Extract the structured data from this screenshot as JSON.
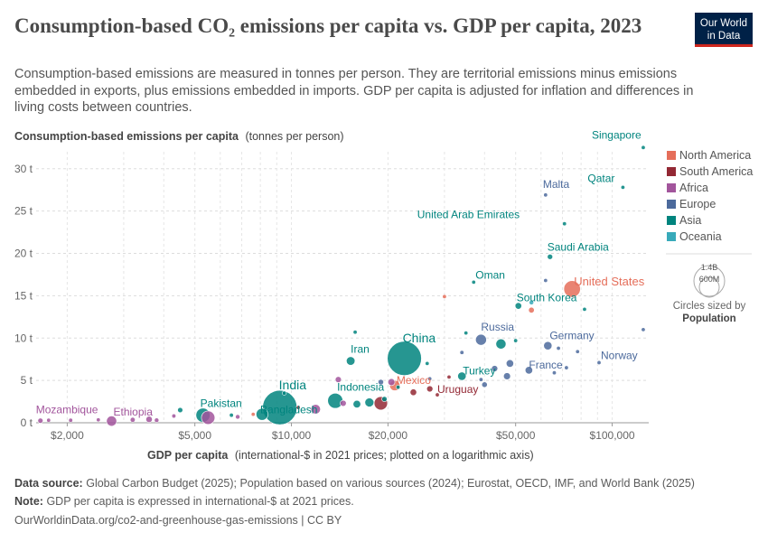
{
  "header": {
    "title": "Consumption-based CO₂ emissions per capita vs. GDP per capita, 2023",
    "subtitle": "Consumption-based emissions are measured in tonnes per person. They are territorial emissions minus emissions embedded in exports, plus emissions embedded in imports. GDP per capita is adjusted for inflation and differences in living costs between countries.",
    "logo_line1": "Our World",
    "logo_line2": "in Data"
  },
  "chart_data": {
    "type": "scatter",
    "title": "Consumption-based CO₂ emissions per capita vs. GDP per capita, 2023",
    "ylabel_bold": "Consumption-based emissions per capita",
    "ylabel_unit": "(tonnes per person)",
    "xlabel_bold": "GDP per capita",
    "xlabel_unit": "(international-$ in 2021 prices; plotted on a logarithmic axis)",
    "x_scale": "log",
    "xlim": [
      1600,
      130000
    ],
    "ylim": [
      0,
      32
    ],
    "x_ticks": [
      {
        "value": 2000,
        "label": "$2,000"
      },
      {
        "value": 5000,
        "label": "$5,000"
      },
      {
        "value": 10000,
        "label": "$10,000"
      },
      {
        "value": 20000,
        "label": "$20,000"
      },
      {
        "value": 50000,
        "label": "$50,000"
      },
      {
        "value": 100000,
        "label": "$100,000"
      }
    ],
    "y_ticks": [
      {
        "value": 0,
        "label": "0 t"
      },
      {
        "value": 5,
        "label": "5 t"
      },
      {
        "value": 10,
        "label": "10 t"
      },
      {
        "value": 15,
        "label": "15 t"
      },
      {
        "value": 20,
        "label": "20 t"
      },
      {
        "value": 25,
        "label": "25 t"
      },
      {
        "value": 30,
        "label": "30 t"
      }
    ],
    "grid": true,
    "legend": {
      "placement": "right",
      "regions": [
        {
          "name": "North America",
          "color": "#e56e5a"
        },
        {
          "name": "South America",
          "color": "#932834"
        },
        {
          "name": "Africa",
          "color": "#a2559c"
        },
        {
          "name": "Europe",
          "color": "#4c6a9c"
        },
        {
          "name": "Asia",
          "color": "#00847e"
        },
        {
          "name": "Oceania",
          "color": "#38aaba"
        }
      ],
      "size_title": "Circles sized by",
      "size_variable": "Population",
      "size_large_label": "1.4B",
      "size_small_label": "600M"
    },
    "points": [
      {
        "label": "Singapore",
        "x": 125000,
        "y": 32.5,
        "region": "Asia",
        "pop": 6
      },
      {
        "label": "Qatar",
        "x": 108000,
        "y": 27.8,
        "region": "Asia",
        "pop": 3
      },
      {
        "label": "Malta",
        "x": 62000,
        "y": 26.9,
        "region": "Europe",
        "pop": 0.5
      },
      {
        "label": "United Arab Emirates",
        "x": 71000,
        "y": 23.5,
        "region": "Asia",
        "pop": 10
      },
      {
        "label": "Saudi Arabia",
        "x": 64000,
        "y": 19.6,
        "region": "Asia",
        "pop": 35
      },
      {
        "label": "Oman",
        "x": 37000,
        "y": 16.6,
        "region": "Asia",
        "pop": 5
      },
      {
        "label": "United States",
        "x": 75000,
        "y": 15.8,
        "region": "North America",
        "pop": 335
      },
      {
        "label": "South Korea",
        "x": 51000,
        "y": 13.8,
        "region": "Asia",
        "pop": 52
      },
      {
        "label": "China",
        "x": 22500,
        "y": 7.6,
        "region": "Asia",
        "pop": 1410
      },
      {
        "label": "Russia",
        "x": 39000,
        "y": 9.8,
        "region": "Europe",
        "pop": 144
      },
      {
        "label": "Germany",
        "x": 63000,
        "y": 9.1,
        "region": "Europe",
        "pop": 84
      },
      {
        "label": "Iran",
        "x": 15300,
        "y": 7.3,
        "region": "Asia",
        "pop": 89
      },
      {
        "label": "Norway",
        "x": 91000,
        "y": 7.1,
        "region": "Europe",
        "pop": 5
      },
      {
        "label": "France",
        "x": 55000,
        "y": 6.2,
        "region": "Europe",
        "pop": 68
      },
      {
        "label": "Turkey",
        "x": 34000,
        "y": 5.5,
        "region": "Asia",
        "pop": 86
      },
      {
        "label": "Mexico",
        "x": 21000,
        "y": 4.4,
        "region": "North America",
        "pop": 129
      },
      {
        "label": "Indonesia",
        "x": 13700,
        "y": 2.6,
        "region": "Asia",
        "pop": 277
      },
      {
        "label": "Uruguay",
        "x": 28500,
        "y": 3.3,
        "region": "South America",
        "pop": 3.4
      },
      {
        "label": "India",
        "x": 9200,
        "y": 1.8,
        "region": "Asia",
        "pop": 1430
      },
      {
        "label": "Bangladesh",
        "x": 8100,
        "y": 1.0,
        "region": "Asia",
        "pop": 172
      },
      {
        "label": "Pakistan",
        "x": 5300,
        "y": 0.9,
        "region": "Asia",
        "pop": 240
      },
      {
        "label": "Ethiopia",
        "x": 2750,
        "y": 0.2,
        "region": "Africa",
        "pop": 126
      },
      {
        "label": "Mozambique",
        "x": 1650,
        "y": 0.25,
        "region": "Africa",
        "pop": 33
      },
      {
        "label": "",
        "x": 5500,
        "y": 0.6,
        "region": "Africa",
        "pop": 220
      },
      {
        "label": "",
        "x": 19000,
        "y": 2.3,
        "region": "South America",
        "pop": 216
      },
      {
        "label": "",
        "x": 45000,
        "y": 9.3,
        "region": "Asia",
        "pop": 124
      },
      {
        "label": "",
        "x": 47000,
        "y": 5.5,
        "region": "Europe",
        "pop": 59
      },
      {
        "label": "",
        "x": 48000,
        "y": 7.0,
        "region": "Europe",
        "pop": 67
      },
      {
        "label": "",
        "x": 43000,
        "y": 6.4,
        "region": "Europe",
        "pop": 47
      },
      {
        "label": "",
        "x": 40000,
        "y": 4.5,
        "region": "Europe",
        "pop": 38
      },
      {
        "label": "",
        "x": 39000,
        "y": 5.1,
        "region": "Europe",
        "pop": 10
      },
      {
        "label": "",
        "x": 56000,
        "y": 13.3,
        "region": "North America",
        "pop": 40
      },
      {
        "label": "",
        "x": 56000,
        "y": 14.2,
        "region": "Oceania",
        "pop": 26
      },
      {
        "label": "",
        "x": 20500,
        "y": 4.8,
        "region": "Africa",
        "pop": 60
      },
      {
        "label": "",
        "x": 14000,
        "y": 5.1,
        "region": "Africa",
        "pop": 45
      },
      {
        "label": "",
        "x": 14500,
        "y": 2.3,
        "region": "Africa",
        "pop": 46
      },
      {
        "label": "",
        "x": 11900,
        "y": 1.6,
        "region": "Africa",
        "pop": 112
      },
      {
        "label": "",
        "x": 16000,
        "y": 2.2,
        "region": "Asia",
        "pop": 70
      },
      {
        "label": "",
        "x": 17500,
        "y": 2.4,
        "region": "Asia",
        "pop": 98
      },
      {
        "label": "",
        "x": 19500,
        "y": 2.8,
        "region": "Asia",
        "pop": 34
      },
      {
        "label": "",
        "x": 21500,
        "y": 4.2,
        "region": "Asia",
        "pop": 20
      },
      {
        "label": "",
        "x": 24000,
        "y": 3.6,
        "region": "South America",
        "pop": 52
      },
      {
        "label": "",
        "x": 27000,
        "y": 4.0,
        "region": "South America",
        "pop": 46
      },
      {
        "label": "",
        "x": 31000,
        "y": 5.4,
        "region": "South America",
        "pop": 19
      },
      {
        "label": "",
        "x": 30000,
        "y": 14.9,
        "region": "North America",
        "pop": 3
      },
      {
        "label": "",
        "x": 4500,
        "y": 1.5,
        "region": "Asia",
        "pop": 33
      },
      {
        "label": "",
        "x": 6500,
        "y": 0.9,
        "region": "Asia",
        "pop": 20
      },
      {
        "label": "",
        "x": 4300,
        "y": 0.8,
        "region": "Africa",
        "pop": 20
      },
      {
        "label": "",
        "x": 3800,
        "y": 0.3,
        "region": "Africa",
        "pop": 25
      },
      {
        "label": "",
        "x": 3200,
        "y": 0.35,
        "region": "Africa",
        "pop": 30
      },
      {
        "label": "",
        "x": 3600,
        "y": 0.4,
        "region": "Africa",
        "pop": 50
      },
      {
        "label": "",
        "x": 2500,
        "y": 0.35,
        "region": "Africa",
        "pop": 17
      },
      {
        "label": "",
        "x": 2050,
        "y": 0.3,
        "region": "Africa",
        "pop": 20
      },
      {
        "label": "",
        "x": 1750,
        "y": 0.3,
        "region": "Africa",
        "pop": 15
      },
      {
        "label": "",
        "x": 6800,
        "y": 0.7,
        "region": "Africa",
        "pop": 25
      },
      {
        "label": "",
        "x": 7600,
        "y": 1.0,
        "region": "North America",
        "pop": 18
      },
      {
        "label": "",
        "x": 10500,
        "y": 1.8,
        "region": "South America",
        "pop": 12
      },
      {
        "label": "",
        "x": 15800,
        "y": 10.7,
        "region": "Asia",
        "pop": 3
      },
      {
        "label": "",
        "x": 26500,
        "y": 7.0,
        "region": "Asia",
        "pop": 3
      },
      {
        "label": "",
        "x": 34000,
        "y": 8.3,
        "region": "Europe",
        "pop": 20
      },
      {
        "label": "",
        "x": 35000,
        "y": 10.6,
        "region": "Asia",
        "pop": 1
      },
      {
        "label": "",
        "x": 62000,
        "y": 16.8,
        "region": "Europe",
        "pop": 0.6
      },
      {
        "label": "",
        "x": 82000,
        "y": 13.4,
        "region": "Asia",
        "pop": 4
      },
      {
        "label": "",
        "x": 78000,
        "y": 8.4,
        "region": "Europe",
        "pop": 9
      },
      {
        "label": "",
        "x": 125000,
        "y": 11.0,
        "region": "Europe",
        "pop": 5
      },
      {
        "label": "",
        "x": 68000,
        "y": 8.8,
        "region": "Europe",
        "pop": 17
      },
      {
        "label": "",
        "x": 72000,
        "y": 6.5,
        "region": "Europe",
        "pop": 5
      },
      {
        "label": "",
        "x": 66000,
        "y": 5.9,
        "region": "Europe",
        "pop": 10
      },
      {
        "label": "",
        "x": 50000,
        "y": 9.7,
        "region": "Asia",
        "pop": 10
      },
      {
        "label": "",
        "x": 19000,
        "y": 4.8,
        "region": "Europe",
        "pop": 37
      },
      {
        "label": "",
        "x": 27000,
        "y": 5.2,
        "region": "Europe",
        "pop": 3
      },
      {
        "label": "",
        "x": 9500,
        "y": 3.5,
        "region": "Asia",
        "pop": 20
      }
    ]
  },
  "footer": {
    "source_label": "Data source:",
    "source_text": "Global Carbon Budget (2025); Population based on various sources (2024); Eurostat, OECD, IMF, and World Bank (2025)",
    "note_label": "Note:",
    "note_text": "GDP per capita is expressed in international-$ at 2021 prices.",
    "url": "OurWorldinData.org/co2-and-greenhouse-gas-emissions | CC BY"
  }
}
